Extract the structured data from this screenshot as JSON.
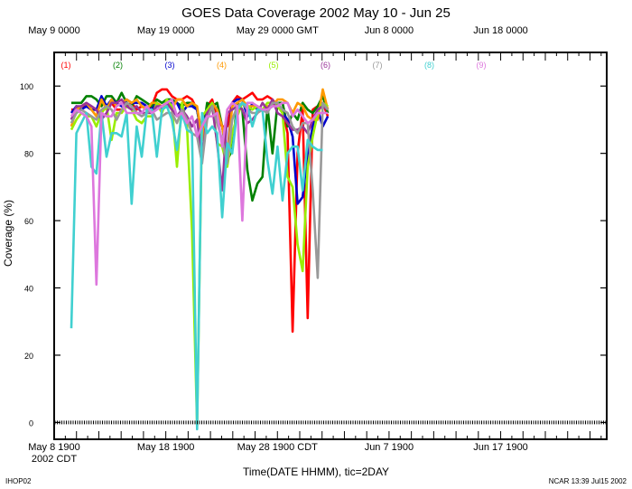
{
  "chart_data": {
    "type": "line",
    "title": "GOES Data Coverage 2002 May 10 - Jun 25",
    "xlabel": "Time(DATE HHMM), tic=2DAY",
    "ylabel": "Coverage (%)",
    "ylim": [
      -5,
      110
    ],
    "y_ticks": [
      0,
      20,
      40,
      60,
      80,
      100
    ],
    "xlim": [
      0,
      49.5
    ],
    "grid": false,
    "top_tick_labels": [
      "May  9 0000",
      "May 19 0000",
      "May 29 0000 GMT",
      "Jun  8 0000",
      "Jun 18 0000"
    ],
    "bottom_tick_labels": [
      "May  8 1900",
      "May 18 1900",
      "May 28 1900 CDT",
      "Jun  7 1900",
      "Jun 17 1900"
    ],
    "bottom_tick_sublabel": "2002 CDT",
    "series": [
      {
        "name": "(1)",
        "color": "#ff0000",
        "values": [
          93,
          93,
          94,
          94,
          93,
          93,
          92,
          94,
          95,
          93,
          93,
          94,
          95,
          93,
          94,
          93,
          94,
          98,
          99,
          99,
          97,
          96,
          96,
          97,
          96,
          93,
          86,
          94,
          96,
          90,
          88,
          88,
          95,
          97,
          96,
          97,
          98,
          96,
          96,
          97,
          96,
          94,
          93,
          86,
          27,
          80,
          93,
          31,
          93,
          94,
          95,
          91
        ]
      },
      {
        "name": "(2)",
        "color": "#008000",
        "values": [
          95,
          95,
          95,
          97,
          97,
          96,
          94,
          97,
          97,
          95,
          98,
          95,
          94,
          97,
          96,
          95,
          94,
          96,
          95,
          96,
          96,
          95,
          94,
          95,
          95,
          93,
          84,
          95,
          94,
          95,
          88,
          78,
          81,
          95,
          93,
          75,
          66,
          71,
          73,
          94,
          80,
          95,
          95,
          88,
          92,
          90,
          95,
          93,
          92,
          94,
          97,
          92
        ]
      },
      {
        "name": "(3)",
        "color": "#0000cc",
        "values": [
          92,
          94,
          93,
          94,
          93,
          93,
          97,
          94,
          96,
          95,
          94,
          96,
          95,
          95,
          95,
          94,
          93,
          95,
          93,
          94,
          95,
          95,
          92,
          94,
          94,
          93,
          85,
          93,
          95,
          93,
          88,
          80,
          95,
          96,
          96,
          91,
          95,
          93,
          93,
          93,
          94,
          95,
          92,
          90,
          85,
          65,
          67,
          80,
          88,
          93,
          88,
          91
        ]
      },
      {
        "name": "(4)",
        "color": "#ff9900",
        "values": [
          88,
          93,
          94,
          95,
          93,
          91,
          96,
          93,
          96,
          94,
          95,
          96,
          95,
          96,
          94,
          93,
          95,
          95,
          94,
          95,
          93,
          96,
          96,
          94,
          95,
          94,
          84,
          92,
          95,
          93,
          88,
          79,
          94,
          95,
          96,
          94,
          94,
          94,
          93,
          94,
          94,
          96,
          96,
          95,
          92,
          95,
          94,
          91,
          90,
          90,
          99,
          93
        ]
      },
      {
        "name": "(5)",
        "color": "#99ee00",
        "values": [
          87,
          90,
          92,
          91,
          91,
          88,
          92,
          94,
          84,
          92,
          92,
          94,
          93,
          90,
          89,
          91,
          91,
          95,
          92,
          96,
          94,
          76,
          95,
          88,
          57,
          -1,
          91,
          93,
          95,
          83,
          82,
          76,
          86,
          91,
          95,
          94,
          93,
          94,
          93,
          95,
          95,
          94,
          92,
          73,
          70,
          53,
          45,
          76,
          85,
          92,
          95,
          94
        ]
      },
      {
        "name": "(6)",
        "color": "#993399",
        "values": [
          90,
          94,
          94,
          95,
          94,
          93,
          90,
          92,
          95,
          95,
          96,
          94,
          93,
          94,
          92,
          92,
          92,
          94,
          94,
          95,
          93,
          91,
          93,
          91,
          88,
          90,
          78,
          92,
          94,
          83,
          69,
          92,
          93,
          94,
          93,
          89,
          90,
          92,
          95,
          93,
          96,
          92,
          91,
          89,
          87,
          87,
          88,
          86,
          90,
          93,
          94,
          93
        ]
      },
      {
        "name": "(7)",
        "color": "#999999",
        "values": [
          89,
          92,
          93,
          92,
          91,
          90,
          93,
          94,
          93,
          90,
          93,
          95,
          94,
          92,
          91,
          92,
          93,
          90,
          91,
          92,
          92,
          89,
          93,
          90,
          86,
          85,
          77,
          90,
          94,
          89,
          84,
          77,
          90,
          94,
          95,
          93,
          92,
          92,
          93,
          92,
          95,
          95,
          93,
          92,
          88,
          86,
          89,
          89,
          69,
          43,
          95,
          93
        ]
      },
      {
        "name": "(8)",
        "color": "#40d0d0",
        "values": [
          28,
          86,
          89,
          92,
          76,
          74,
          92,
          79,
          86,
          86,
          85,
          92,
          65,
          88,
          79,
          93,
          93,
          79,
          93,
          94,
          90,
          81,
          92,
          87,
          86,
          -2,
          92,
          86,
          88,
          86,
          61,
          83,
          80,
          93,
          95,
          94,
          88,
          93,
          93,
          78,
          68,
          82,
          66,
          80,
          82,
          82,
          69,
          84,
          82,
          81,
          81
        ]
      },
      {
        "name": "(9)",
        "color": "#dd77dd",
        "values": [
          91,
          93,
          92,
          91,
          88,
          41,
          92,
          91,
          91,
          94,
          95,
          92,
          92,
          92,
          92,
          94,
          92,
          93,
          94,
          95,
          96,
          91,
          92,
          89,
          91,
          85,
          88,
          91,
          91,
          92,
          82,
          93,
          95,
          94,
          60,
          95,
          95,
          94,
          93,
          93,
          94,
          94,
          95,
          95,
          91,
          93,
          91,
          89,
          90,
          92,
          92,
          92
        ]
      }
    ]
  },
  "footer_left": "IHOP02",
  "footer_right": "NCAR 13:39 Jul15 2002"
}
